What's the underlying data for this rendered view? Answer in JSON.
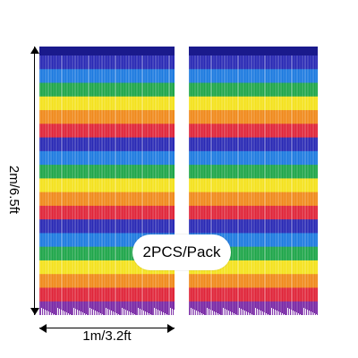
{
  "product": {
    "width_label": "1m/3.2ft",
    "height_label": "2m/6.5ft",
    "pack_label": "2PCS/Pack"
  },
  "colors": {
    "stripes": [
      "#2a2ab5",
      "#1e7be0",
      "#1fa64a",
      "#f4e21e",
      "#f08a1c",
      "#e0263a",
      "#7a2aa6"
    ],
    "header_bar": "#1a1a8c",
    "tinsel_highlight": "#ffffff"
  }
}
